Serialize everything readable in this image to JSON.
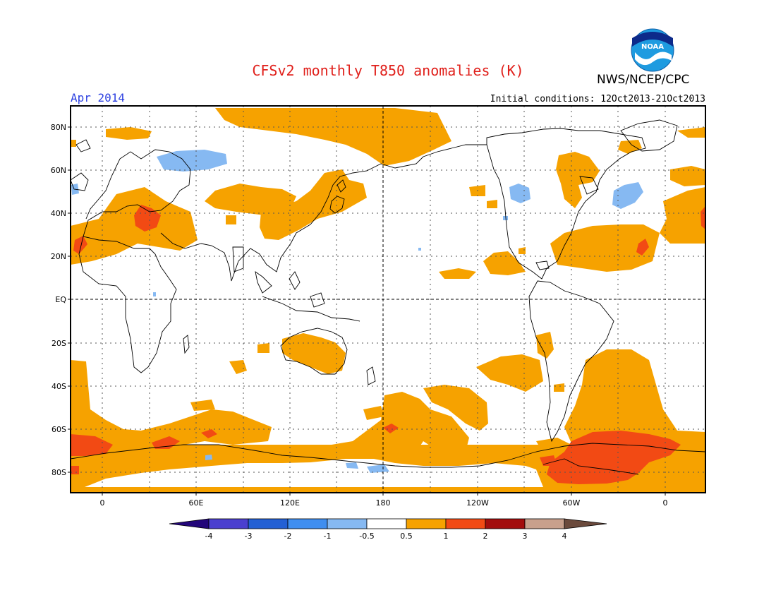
{
  "title": "CFSv2 monthly T850 anomalies (K)",
  "organization": "NWS/NCEP/CPC",
  "logo_text": "NOAA",
  "month_label": "Apr 2014",
  "initial_conditions": "Initial conditions: 12Oct2013-21Oct2013",
  "lat_labels": [
    "80N",
    "60N",
    "40N",
    "20N",
    "EQ",
    "20S",
    "40S",
    "60S",
    "80S"
  ],
  "lon_labels": [
    "0",
    "60E",
    "120E",
    "180",
    "120W",
    "60W",
    "0"
  ],
  "colorbar": {
    "labels": [
      "-4",
      "-3",
      "-2",
      "-1",
      "-0.5",
      "0.5",
      "1",
      "2",
      "3",
      "4"
    ],
    "colors": {
      "lt_-4": "#23067a",
      "-4_-3": "#4b3fcf",
      "-3_-2": "#2360d4",
      "-2_-1": "#3f8ef0",
      "-1_-0.5": "#86b9f2",
      "-0.5_0.5": "#ffffff",
      "0.5_1": "#f6a200",
      "1_2": "#f24a14",
      "2_3": "#a30d0d",
      "3_4": "#c8a08c",
      "gt_4": "#6b4a3c"
    }
  }
}
